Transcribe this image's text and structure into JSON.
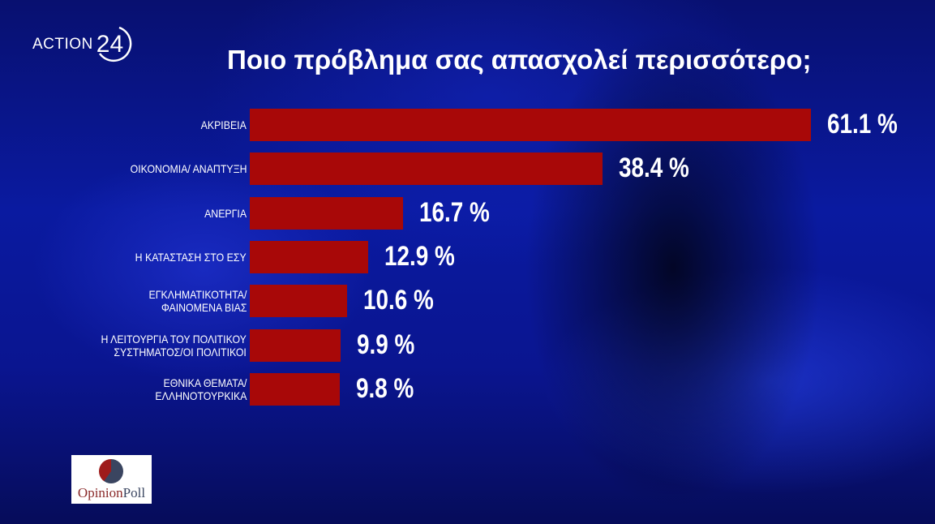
{
  "logo": {
    "brand_text": "ACTION",
    "brand_number": "24"
  },
  "chart_data": {
    "type": "bar",
    "orientation": "horizontal",
    "title": "Ποιο πρόβλημα σας απασχολεί περισσότερο;",
    "categories": [
      [
        "ΑΚΡΙΒΕΙΑ"
      ],
      [
        "ΟΙΚΟΝΟΜΙΑ/ ΑΝΑΠΤΥΞΗ"
      ],
      [
        "ΑΝΕΡΓΙΑ"
      ],
      [
        "Η ΚΑΤΑΣΤΑΣΗ ΣΤΟ ΕΣΥ"
      ],
      [
        "ΕΓΚΛΗΜΑΤΙΚΟΤΗΤΑ/",
        "ΦΑΙΝΟΜΕΝΑ ΒΙΑΣ"
      ],
      [
        "Η ΛΕΙΤΟΥΡΓΙΑ ΤΟΥ ΠΟΛΙΤΙΚΟΥ",
        "ΣΥΣΤΗΜΑΤΟΣ/ΟΙ ΠΟΛΙΤΙΚΟΙ"
      ],
      [
        "ΕΘΝΙΚΑ ΘΕΜΑΤΑ/",
        "ΕΛΛΗΝΟΤΟΥΡΚΙΚΑ"
      ]
    ],
    "values": [
      61.1,
      38.4,
      16.7,
      12.9,
      10.6,
      9.9,
      9.8
    ],
    "value_labels": [
      "61.1 %",
      "38.4 %",
      "16.7 %",
      "12.9 %",
      "10.6 %",
      "9.9 %",
      "9.8 %"
    ],
    "bar_color": "#a80808",
    "xlim": [
      0,
      70
    ]
  },
  "source": {
    "name_part1": "Opinion",
    "name_part2": "Poll"
  }
}
